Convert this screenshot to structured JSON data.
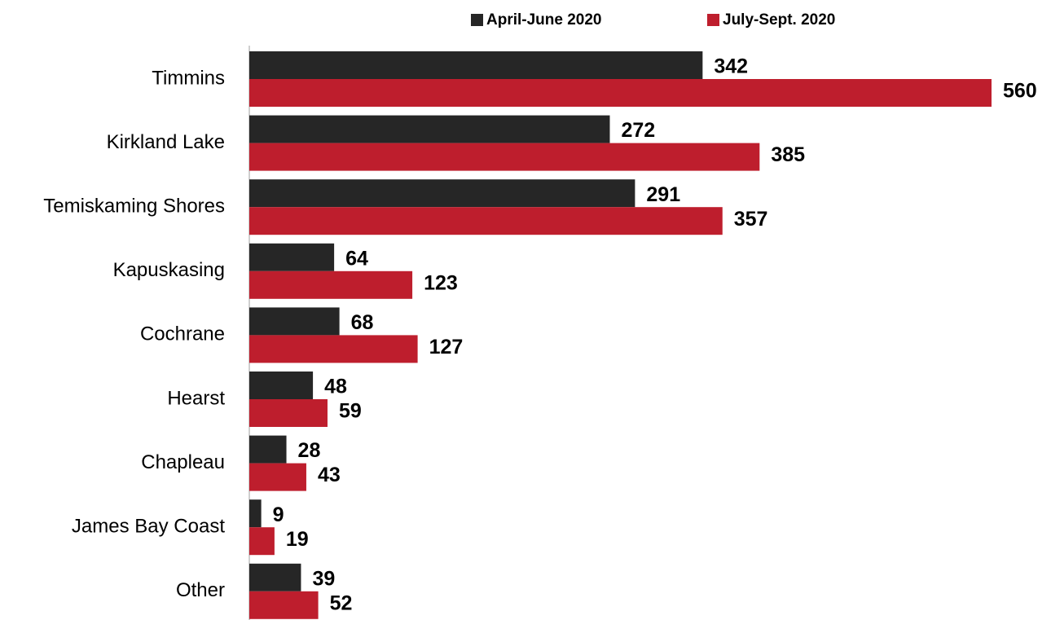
{
  "chart_data": {
    "type": "bar",
    "orientation": "horizontal",
    "categories": [
      "Timmins",
      "Kirkland Lake",
      "Temiskaming Shores",
      "Kapuskasing",
      "Cochrane",
      "Hearst",
      "Chapleau",
      "James Bay Coast",
      "Other"
    ],
    "series": [
      {
        "name": "April-June 2020",
        "color": "#262626",
        "values": [
          342,
          272,
          291,
          64,
          68,
          48,
          28,
          9,
          39
        ]
      },
      {
        "name": "July-Sept. 2020",
        "color": "#be1e2d",
        "values": [
          560,
          385,
          357,
          123,
          127,
          59,
          43,
          19,
          52
        ]
      }
    ],
    "xlim": [
      0,
      560
    ],
    "legend": "top",
    "value_labels_shown": true
  }
}
